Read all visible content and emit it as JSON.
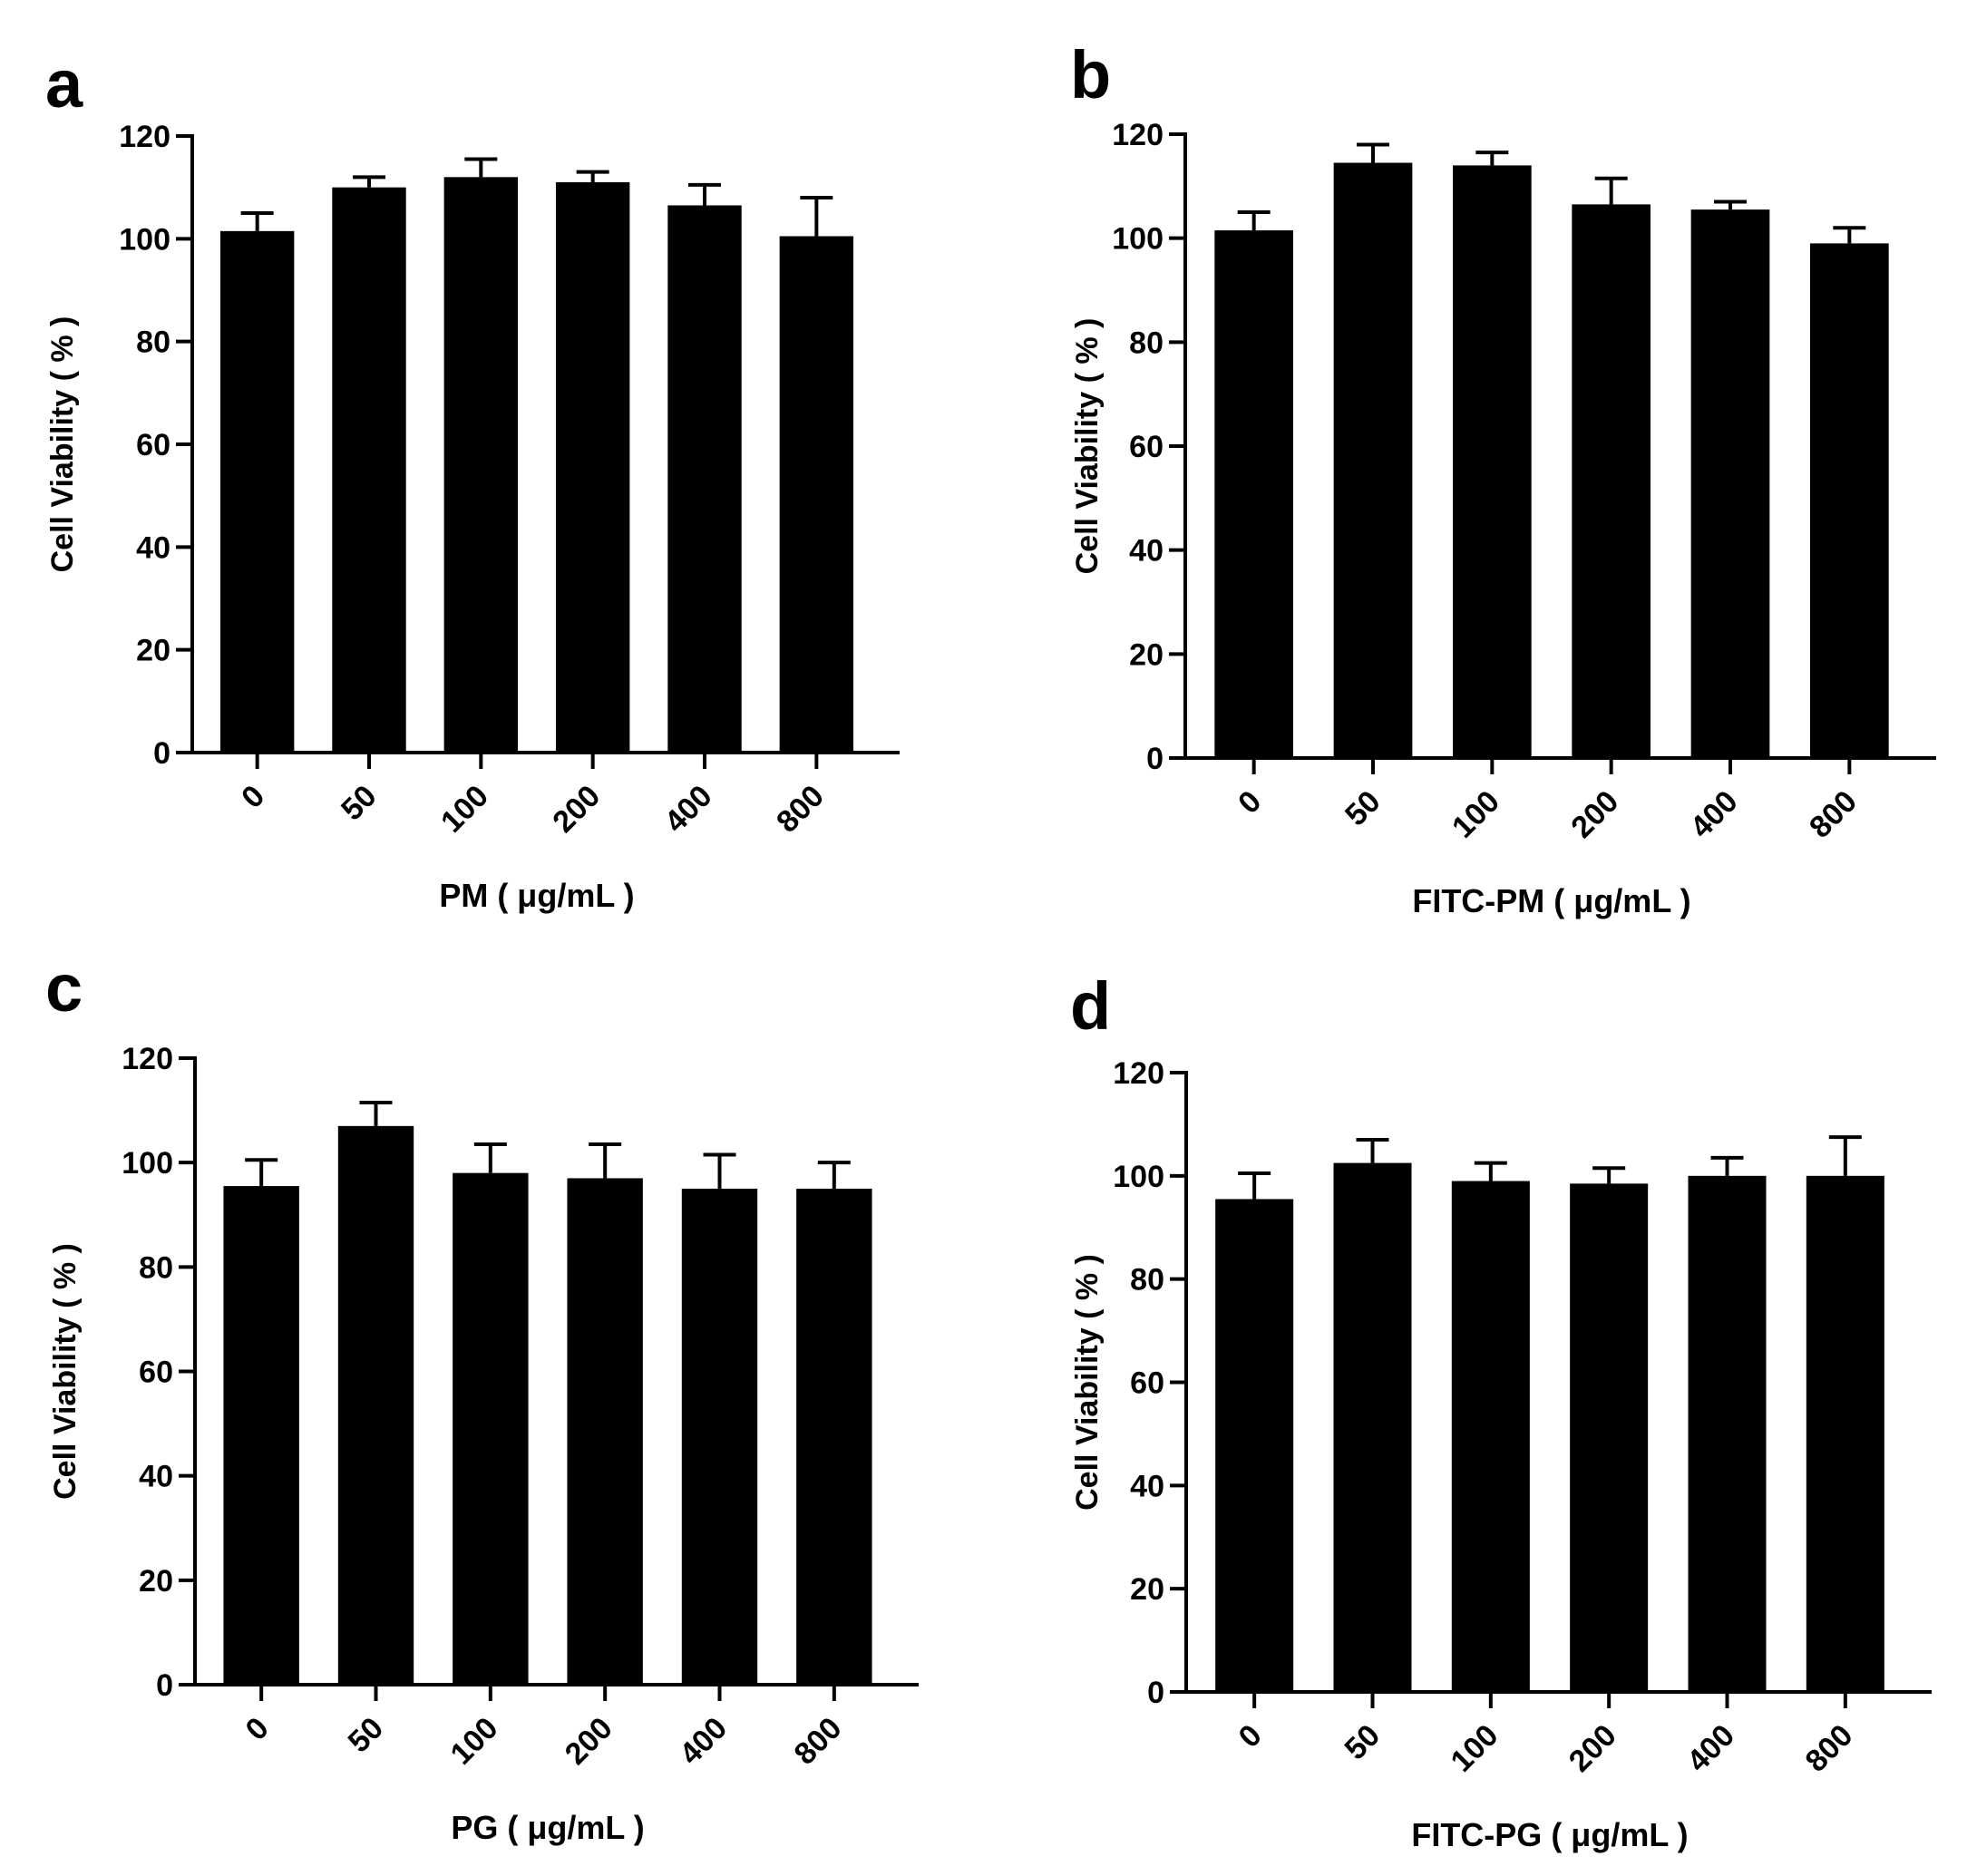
{
  "figure": {
    "background": "#ffffff",
    "bar_color": "#000000"
  },
  "chart_data": [
    {
      "panel": "a",
      "type": "bar",
      "categories": [
        "0",
        "50",
        "100",
        "200",
        "400",
        "800"
      ],
      "values": [
        101.5,
        110,
        112,
        111,
        106.5,
        100.5
      ],
      "errors": [
        3.5,
        2.0,
        3.5,
        2.0,
        4.0,
        7.5
      ],
      "xlabel": "PM ( μg/mL )",
      "ylabel": "Cell Viability ( % )",
      "ylim": [
        0,
        120
      ],
      "yticks": [
        0,
        20,
        40,
        60,
        80,
        100,
        120
      ]
    },
    {
      "panel": "b",
      "type": "bar",
      "categories": [
        "0",
        "50",
        "100",
        "200",
        "400",
        "800"
      ],
      "values": [
        101.5,
        114.5,
        114,
        106.5,
        105.5,
        99
      ],
      "errors": [
        3.5,
        3.5,
        2.5,
        5.0,
        1.5,
        3.0
      ],
      "xlabel": "FITC-PM ( μg/mL )",
      "ylabel": "Cell Viability ( % )",
      "ylim": [
        0,
        120
      ],
      "yticks": [
        0,
        20,
        40,
        60,
        80,
        100,
        120
      ]
    },
    {
      "panel": "c",
      "type": "bar",
      "categories": [
        "0",
        "50",
        "100",
        "200",
        "400",
        "800"
      ],
      "values": [
        95.5,
        107,
        98,
        97,
        95,
        95
      ],
      "errors": [
        5.0,
        4.5,
        5.5,
        6.5,
        6.5,
        5.0
      ],
      "xlabel": "PG ( μg/mL )",
      "ylabel": "Cell Viability ( % )",
      "ylim": [
        0,
        120
      ],
      "yticks": [
        0,
        20,
        40,
        60,
        80,
        100,
        120
      ]
    },
    {
      "panel": "d",
      "type": "bar",
      "categories": [
        "0",
        "50",
        "100",
        "200",
        "400",
        "800"
      ],
      "values": [
        95.5,
        102.5,
        99,
        98.5,
        100,
        100
      ],
      "errors": [
        5.0,
        4.5,
        3.5,
        3.0,
        3.5,
        7.5
      ],
      "xlabel": "FITC-PG ( μg/mL )",
      "ylabel": "Cell Viability ( % )",
      "ylim": [
        0,
        120
      ],
      "yticks": [
        0,
        20,
        40,
        60,
        80,
        100,
        120
      ]
    }
  ]
}
